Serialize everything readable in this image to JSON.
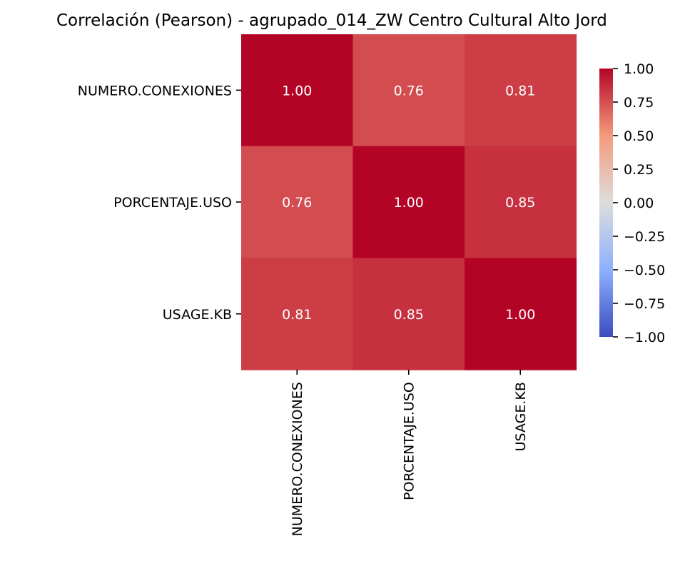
{
  "chart_data": {
    "type": "heatmap",
    "title": "Correlación (Pearson) - agrupado_014_ZW Centro Cultural Alto Jord",
    "row_labels": [
      "NUMERO.CONEXIONES",
      "PORCENTAJE.USO",
      "USAGE.KB"
    ],
    "col_labels": [
      "NUMERO.CONEXIONES",
      "PORCENTAJE.USO",
      "USAGE.KB"
    ],
    "values": [
      [
        1.0,
        0.76,
        0.81
      ],
      [
        0.76,
        1.0,
        0.85
      ],
      [
        0.81,
        0.85,
        1.0
      ]
    ],
    "value_labels": [
      [
        "1.00",
        "0.76",
        "0.81"
      ],
      [
        "0.76",
        "1.00",
        "0.85"
      ],
      [
        "0.81",
        "0.85",
        "1.00"
      ]
    ],
    "colormap": "coolwarm",
    "vmin": -1.0,
    "vmax": 1.0,
    "colorbar": {
      "ticks": [
        1.0,
        0.75,
        0.5,
        0.25,
        0.0,
        -0.25,
        -0.5,
        -0.75,
        -1.0
      ],
      "tick_labels": [
        "1.00",
        "0.75",
        "0.50",
        "0.25",
        "0.00",
        "−0.25",
        "−0.50",
        "−0.75",
        "−1.00"
      ]
    },
    "colors": {
      "high": "#b40426",
      "mid": "#dddddd",
      "low": "#3b4cc0"
    }
  }
}
